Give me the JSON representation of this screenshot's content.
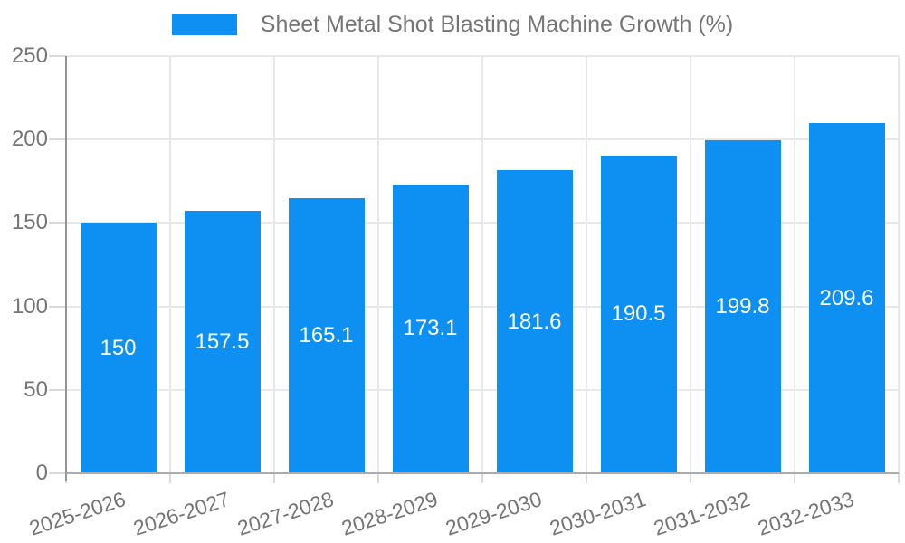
{
  "legend": {
    "label": "Sheet Metal Shot Blasting Machine Growth (%)"
  },
  "chart_data": {
    "type": "bar",
    "title": "",
    "series_name": "Sheet Metal Shot Blasting Machine Growth (%)",
    "categories": [
      "2025-2026",
      "2026-2027",
      "2027-2028",
      "2028-2029",
      "2029-2030",
      "2030-2031",
      "2031-2032",
      "2032-2033"
    ],
    "values": [
      150,
      157.5,
      165.1,
      173.1,
      181.6,
      190.5,
      199.8,
      209.6
    ],
    "value_labels": [
      "150",
      "157.5",
      "165.1",
      "173.1",
      "181.6",
      "190.5",
      "199.8",
      "209.6"
    ],
    "xlabel": "",
    "ylabel": "",
    "ylim": [
      0,
      250
    ],
    "yticks": [
      0,
      50,
      100,
      150,
      200,
      250
    ],
    "grid": true,
    "legend_position": "top-center",
    "bar_labels_inside": true,
    "colors": {
      "bar": "#0d90f2",
      "bar_label_text": "#ffffff",
      "axis_text": "#757575",
      "legend_text": "#757575",
      "gridline": "#e8e8e8",
      "tick": "#d9d9d9",
      "y_axis_line": "#949494",
      "x_axis_line": "#ababab",
      "background": "#ffffff"
    }
  }
}
